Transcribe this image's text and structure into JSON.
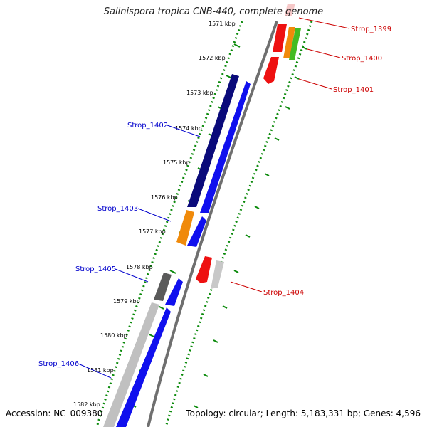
{
  "title": {
    "organism": "Salinispora tropica CNB-440",
    "suffix": ", complete genome"
  },
  "footer": {
    "accession": "Accession: NC_009380",
    "summary": "Topology: circular; Length: 5,183,331 bp; Genes: 4,596"
  },
  "colors": {
    "backbone": "#808080",
    "tick_track": "#0b8a0b",
    "label_plus": "#cc0000",
    "label_minus": "#0000cc"
  },
  "kbp_ticks": [
    "1571 kbp",
    "1572 kbp",
    "1573 kbp",
    "1574 kbp",
    "1575 kbp",
    "1576 kbp",
    "1577 kbp",
    "1578 kbp",
    "1579 kbp",
    "1580 kbp",
    "1581 kbp",
    "1582 kbp"
  ],
  "gene_labels": {
    "Strop_1399": "Strop_1399",
    "Strop_1400": "Strop_1400",
    "Strop_1401": "Strop_1401",
    "Strop_1402": "Strop_1402",
    "Strop_1403": "Strop_1403",
    "Strop_1404": "Strop_1404",
    "Strop_1405": "Strop_1405",
    "Strop_1406": "Strop_1406"
  }
}
